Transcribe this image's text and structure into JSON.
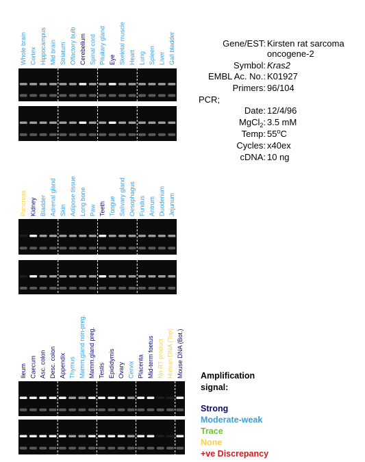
{
  "panels": [
    {
      "lanes": [
        {
          "label": "Whole brain",
          "color": "#3a9fdc"
        },
        {
          "label": "Cortex",
          "color": "#3a9fdc"
        },
        {
          "label": "Hippocampus",
          "color": "#3a9fdc"
        },
        {
          "label": "Mid brain",
          "color": "#3a9fdc"
        },
        {
          "label": "Striatum",
          "color": "#3a9fdc"
        },
        {
          "label": "Olfactory bulb",
          "color": "#3a9fdc"
        },
        {
          "label": "Cerebellum",
          "color": "#0a0a6e"
        },
        {
          "label": "Spinal cord",
          "color": "#3a9fdc"
        },
        {
          "label": "Pituitary gland",
          "color": "#3a9fdc"
        },
        {
          "label": "Eye",
          "color": "#0a0a6e"
        },
        {
          "label": "Skeletal muscle",
          "color": "#3a9fdc"
        },
        {
          "label": "Heart",
          "color": "#3a9fdc"
        },
        {
          "label": "Lung",
          "color": "#3a9fdc"
        },
        {
          "label": "Spleen",
          "color": "#3a9fdc"
        },
        {
          "label": "Liver",
          "color": "#3a9fdc"
        },
        {
          "label": "Gall bladder",
          "color": "#3a9fdc"
        }
      ]
    },
    {
      "lanes": [
        {
          "label": "Pancreas",
          "color": "#f5d04a"
        },
        {
          "label": "Kidney",
          "color": "#0a0a6e"
        },
        {
          "label": "Bladder",
          "color": "#3a9fdc"
        },
        {
          "label": "Adrenal gland",
          "color": "#3a9fdc"
        },
        {
          "label": "Skin",
          "color": "#3a9fdc"
        },
        {
          "label": "Adipose tissue",
          "color": "#3a9fdc"
        },
        {
          "label": "Long bone",
          "color": "#3a9fdc"
        },
        {
          "label": "Paw",
          "color": "#3a9fdc"
        },
        {
          "label": "Teeth",
          "color": "#0a0a6e"
        },
        {
          "label": "Tongue",
          "color": "#3a9fdc"
        },
        {
          "label": "Salivary gland",
          "color": "#3a9fdc"
        },
        {
          "label": "Oesophagus",
          "color": "#3a9fdc"
        },
        {
          "label": "Fundus",
          "color": "#3a9fdc"
        },
        {
          "label": "Antrum",
          "color": "#3a9fdc"
        },
        {
          "label": "Duodenum",
          "color": "#3a9fdc"
        },
        {
          "label": "Jejunum",
          "color": "#3a9fdc"
        }
      ]
    },
    {
      "lanes": [
        {
          "label": "Ileum",
          "color": "#0a0a6e"
        },
        {
          "label": "Caecum",
          "color": "#0a0a6e"
        },
        {
          "label": "Asc. colon",
          "color": "#0a0a6e"
        },
        {
          "label": "Desc. colon",
          "color": "#0a0a6e"
        },
        {
          "label": "Appendix",
          "color": "#0a0a6e"
        },
        {
          "label": "Thymus",
          "color": "#3a9fdc"
        },
        {
          "label": "Mamm.gland non-preg.",
          "color": "#3a9fdc"
        },
        {
          "label": "Mamm.gland preg.",
          "color": "#0a0a6e"
        },
        {
          "label": "Testis",
          "color": "#0a0a6e"
        },
        {
          "label": "Epididymis",
          "color": "#0a0a6e"
        },
        {
          "label": "Ovary",
          "color": "#0a0a6e"
        },
        {
          "label": "Cervix",
          "color": "#3a9fdc"
        },
        {
          "label": "Placenta",
          "color": "#0a0a6e"
        },
        {
          "label": "Mid-term foetus",
          "color": "#0a0a6e"
        },
        {
          "label": "No RT product",
          "color": "#f5d04a"
        },
        {
          "label": "Human DNA (Top)",
          "color": "#f5d04a"
        },
        {
          "label": "Mouse DNA (Bot.)",
          "color": "#0a0a6e"
        }
      ]
    }
  ],
  "info": {
    "gene_label": "Gene/EST:",
    "gene_value_1": "Kirsten rat sarcoma",
    "gene_value_2": "oncogene-2",
    "symbol_label": "Symbol:",
    "symbol_value": "Kras2",
    "embl_label": "EMBL Ac. No.:",
    "embl_value": "K01927",
    "primers_label": "Primers:",
    "primers_value": "96/104",
    "pcr": "PCR;",
    "date_label": "Date:",
    "date_value": "12/4/96",
    "mg_label": "MgCl",
    "mg_sub": "2",
    "mg_colon": ":",
    "mg_value": "3.5 mM",
    "temp_label": "Temp:",
    "temp_value": "55",
    "temp_sup": "o",
    "temp_unit": "C",
    "cycles_label": "Cycles:",
    "cycles_value": "x40ex",
    "cdna_label": "cDNA:",
    "cdna_value": "10 ng"
  },
  "legend": {
    "title_1": "Amplification",
    "title_2": "signal:",
    "items": [
      {
        "label": "Strong",
        "color": "#0a0a6e"
      },
      {
        "label": "Moderate-weak",
        "color": "#3a9fdc"
      },
      {
        "label": "Trace",
        "color": "#6cc62a"
      },
      {
        "label": "None",
        "color": "#f5d04a"
      },
      {
        "label": "+ve Discrepancy",
        "color": "#d0191e"
      }
    ]
  }
}
